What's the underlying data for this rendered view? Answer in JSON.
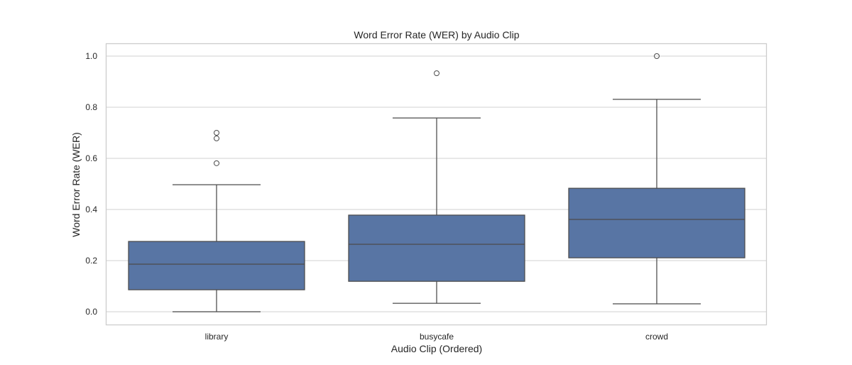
{
  "chart_data": {
    "type": "box",
    "title": "Word Error Rate (WER) by Audio Clip",
    "xlabel": "Audio Clip (Ordered)",
    "ylabel": "Word Error Rate (WER)",
    "ylim": [
      -0.05,
      1.05
    ],
    "yticks": [
      "0.0",
      "0.2",
      "0.4",
      "0.6",
      "0.8",
      "1.0"
    ],
    "grid": true,
    "legend": null,
    "box_color": "#5875a4",
    "line_color": "#4b4b4b",
    "categories": [
      "library",
      "busycafe",
      "crowd"
    ],
    "boxes": [
      {
        "category": "library",
        "whisker_low": 0.0,
        "q1": 0.086,
        "median": 0.186,
        "q3": 0.275,
        "whisker_high": 0.497,
        "outliers": [
          0.581,
          0.678,
          0.7
        ]
      },
      {
        "category": "busycafe",
        "whisker_low": 0.033,
        "q1": 0.119,
        "median": 0.264,
        "q3": 0.378,
        "whisker_high": 0.758,
        "outliers": [
          0.933
        ]
      },
      {
        "category": "crowd",
        "whisker_low": 0.031,
        "q1": 0.211,
        "median": 0.361,
        "q3": 0.483,
        "whisker_high": 0.831,
        "outliers": [
          1.0
        ]
      }
    ]
  }
}
